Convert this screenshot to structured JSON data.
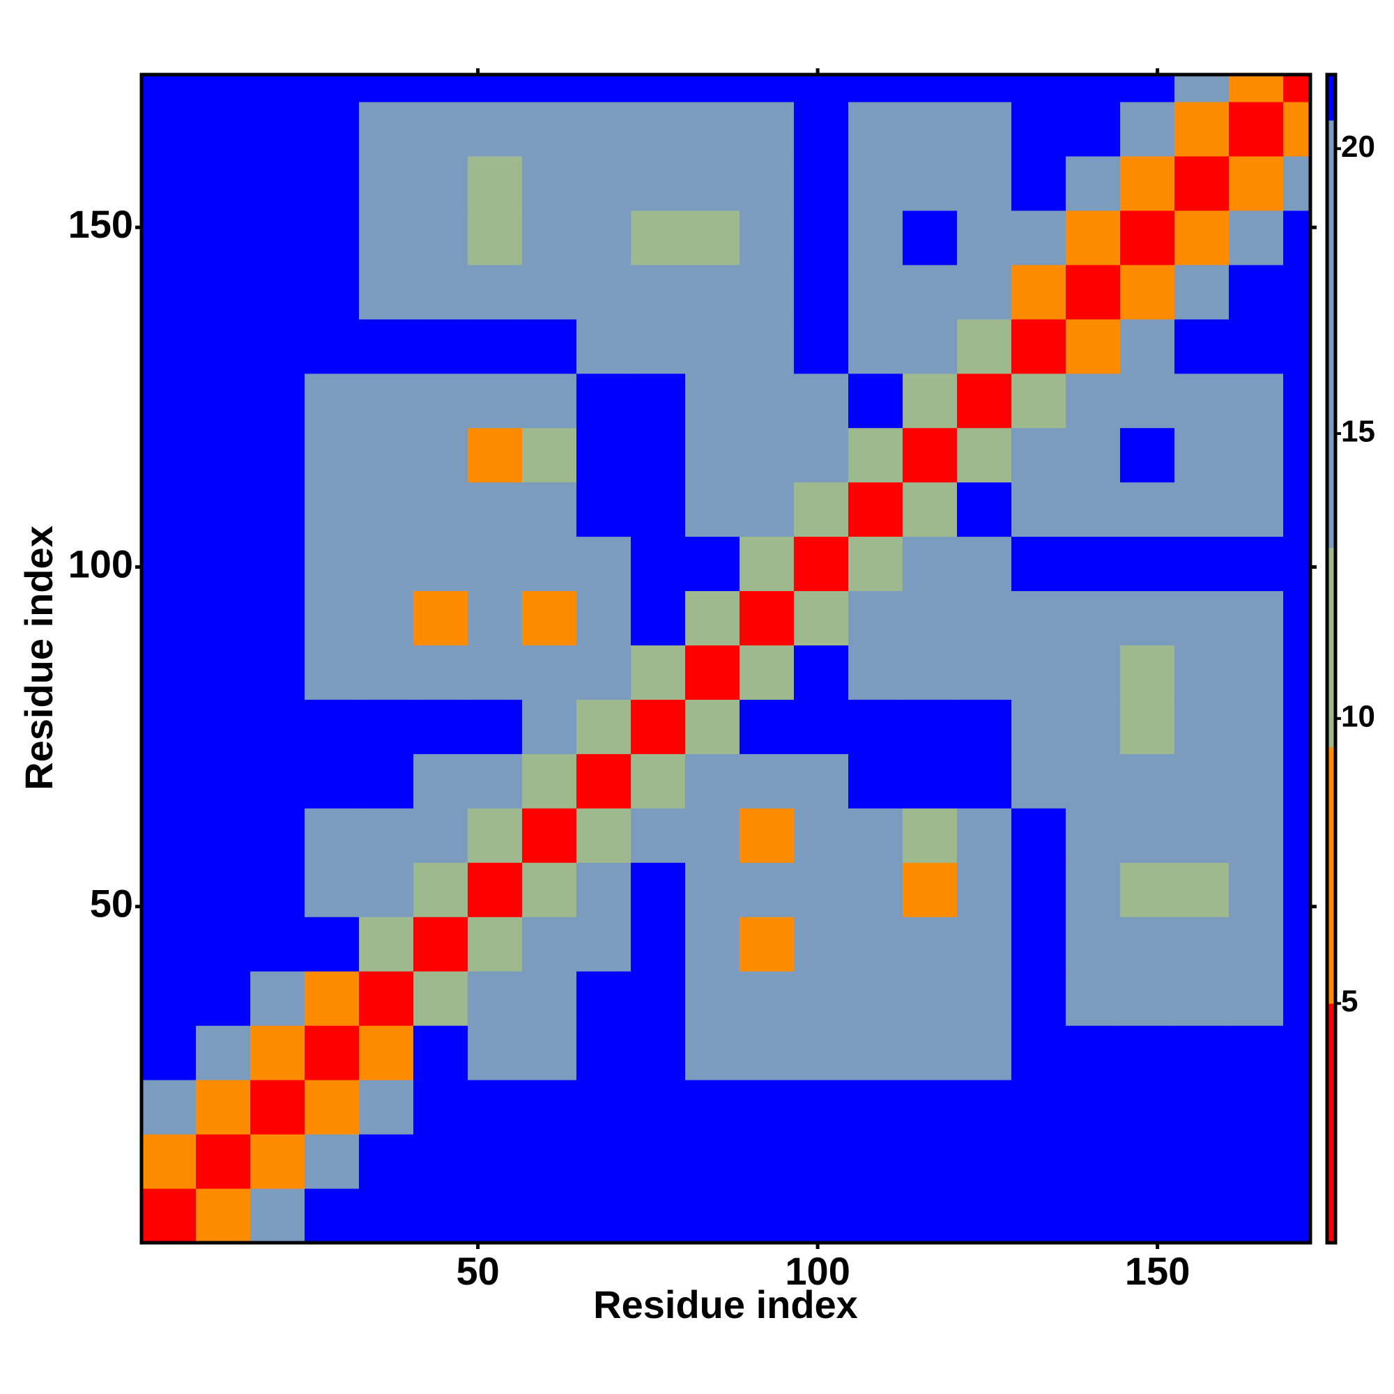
{
  "chart_data": {
    "type": "heatmap",
    "xlabel": "Residue index",
    "ylabel": "Residue index",
    "xlim": [
      0.5,
      172.5
    ],
    "ylim": [
      0.5,
      172.5
    ],
    "xticks": [
      50,
      100,
      150
    ],
    "yticks": [
      50,
      100,
      150
    ],
    "xbins": [
      0.5,
      8.5,
      16.5,
      24.5,
      32.5,
      40.5,
      48.5,
      56.5,
      64.5,
      72.5,
      80.5,
      88.5,
      96.5,
      104.5,
      112.5,
      120.5,
      128.5,
      136.5,
      144.5,
      152.5,
      160.5,
      168.5,
      172.5
    ],
    "ybins": [
      0.5,
      8.5,
      16.5,
      24.5,
      32.5,
      40.5,
      48.5,
      56.5,
      64.5,
      72.5,
      80.5,
      88.5,
      96.5,
      104.5,
      112.5,
      120.5,
      128.5,
      136.5,
      144.5,
      152.5,
      160.5,
      168.5,
      172.5
    ],
    "z": [
      [
        2,
        8,
        14,
        21,
        21,
        21,
        21,
        21,
        21,
        21,
        21,
        21,
        21,
        21,
        21,
        21,
        21,
        21,
        21,
        21,
        21,
        21
      ],
      [
        8,
        2,
        8,
        14,
        21,
        21,
        21,
        21,
        21,
        21,
        21,
        21,
        21,
        21,
        21,
        21,
        21,
        21,
        21,
        21,
        21,
        21
      ],
      [
        14,
        8,
        2,
        8,
        14,
        21,
        21,
        21,
        21,
        21,
        21,
        21,
        21,
        21,
        21,
        21,
        21,
        21,
        21,
        21,
        21,
        21
      ],
      [
        21,
        14,
        8,
        2,
        8,
        21,
        15,
        15,
        21,
        21,
        15,
        15,
        15,
        15,
        15,
        15,
        21,
        21,
        21,
        21,
        21,
        21
      ],
      [
        21,
        21,
        14,
        8,
        2,
        11,
        15,
        15,
        21,
        21,
        15,
        15,
        15,
        15,
        15,
        15,
        21,
        15,
        15,
        15,
        15,
        21
      ],
      [
        21,
        21,
        21,
        21,
        11,
        2,
        11,
        15,
        15,
        21,
        15,
        9,
        15,
        15,
        15,
        15,
        21,
        15,
        15,
        15,
        15,
        21
      ],
      [
        21,
        21,
        21,
        15,
        15,
        11,
        2,
        11,
        15,
        21,
        15,
        15,
        15,
        15,
        9,
        15,
        21,
        15,
        11,
        11,
        15,
        21
      ],
      [
        21,
        21,
        21,
        15,
        15,
        15,
        11,
        2,
        11,
        15,
        15,
        9,
        15,
        15,
        11,
        15,
        21,
        15,
        15,
        15,
        15,
        21
      ],
      [
        21,
        21,
        21,
        21,
        21,
        15,
        15,
        11,
        2,
        11,
        15,
        15,
        15,
        21,
        21,
        21,
        15,
        15,
        15,
        15,
        15,
        21
      ],
      [
        21,
        21,
        21,
        21,
        21,
        21,
        21,
        15,
        11,
        2,
        11,
        21,
        21,
        21,
        21,
        21,
        15,
        15,
        11,
        15,
        15,
        21
      ],
      [
        21,
        21,
        21,
        15,
        15,
        15,
        15,
        15,
        15,
        11,
        2,
        11,
        21,
        15,
        15,
        15,
        15,
        15,
        11,
        15,
        15,
        21
      ],
      [
        21,
        21,
        21,
        15,
        15,
        9,
        15,
        9,
        15,
        21,
        11,
        2,
        11,
        15,
        15,
        15,
        15,
        15,
        15,
        15,
        15,
        21
      ],
      [
        21,
        21,
        21,
        15,
        15,
        15,
        15,
        15,
        15,
        21,
        21,
        11,
        2,
        11,
        15,
        15,
        21,
        21,
        21,
        21,
        21,
        21
      ],
      [
        21,
        21,
        21,
        15,
        15,
        15,
        15,
        15,
        21,
        21,
        15,
        15,
        11,
        2,
        11,
        21,
        15,
        15,
        15,
        15,
        15,
        21
      ],
      [
        21,
        21,
        21,
        15,
        15,
        15,
        9,
        11,
        21,
        21,
        15,
        15,
        15,
        11,
        2,
        11,
        15,
        15,
        21,
        15,
        15,
        21
      ],
      [
        21,
        21,
        21,
        15,
        15,
        15,
        15,
        15,
        21,
        21,
        15,
        15,
        15,
        21,
        11,
        2,
        11,
        15,
        15,
        15,
        15,
        21
      ],
      [
        21,
        21,
        21,
        21,
        21,
        21,
        21,
        21,
        15,
        15,
        15,
        15,
        21,
        15,
        15,
        11,
        2,
        8,
        14,
        21,
        21,
        21
      ],
      [
        21,
        21,
        21,
        21,
        15,
        15,
        15,
        15,
        15,
        15,
        15,
        15,
        21,
        15,
        15,
        15,
        8,
        2,
        8,
        14,
        21,
        21
      ],
      [
        21,
        21,
        21,
        21,
        15,
        15,
        11,
        15,
        15,
        11,
        11,
        15,
        21,
        15,
        21,
        15,
        14,
        8,
        2,
        8,
        14,
        21
      ],
      [
        21,
        21,
        21,
        21,
        15,
        15,
        11,
        15,
        15,
        15,
        15,
        15,
        21,
        15,
        15,
        15,
        21,
        14,
        8,
        2,
        8,
        14
      ],
      [
        21,
        21,
        21,
        21,
        15,
        15,
        15,
        15,
        15,
        15,
        15,
        15,
        21,
        15,
        15,
        15,
        21,
        21,
        14,
        8,
        2,
        8
      ],
      [
        21,
        21,
        21,
        21,
        21,
        21,
        21,
        21,
        21,
        21,
        21,
        21,
        21,
        21,
        21,
        21,
        21,
        21,
        21,
        14,
        8,
        2
      ]
    ],
    "clim": [
      0.8,
      21.3
    ],
    "colorbar_ticks": [
      5,
      10,
      15,
      20
    ],
    "colorscale": [
      {
        "from": 0.8,
        "color": "#ff0000"
      },
      {
        "from": 5,
        "color": "#ff8c00"
      },
      {
        "from": 9.5,
        "color": "#9fb98f"
      },
      {
        "from": 13,
        "color": "#7b9bbf"
      },
      {
        "from": 20.5,
        "color": "#0000ff"
      }
    ]
  }
}
